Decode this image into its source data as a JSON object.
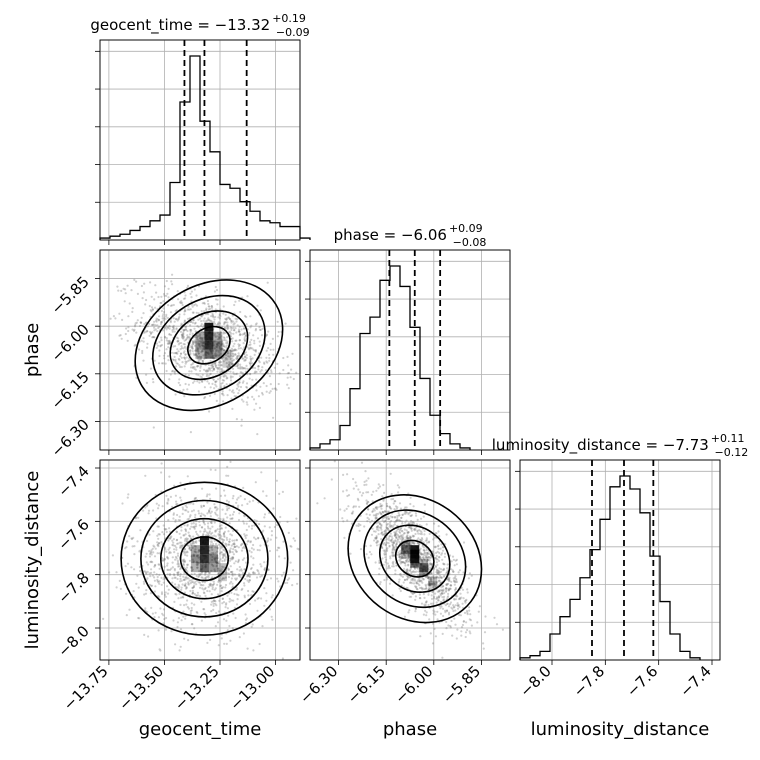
{
  "chart_data": {
    "type": "corner",
    "parameters": [
      "geocent_time",
      "phase",
      "luminosity_distance"
    ],
    "titles": [
      {
        "param": "geocent_time",
        "label": "geocent_time = ",
        "median": "−13.32",
        "plus": "+0.19",
        "minus": "−0.09"
      },
      {
        "param": "phase",
        "label": "phase = ",
        "median": "−6.06",
        "plus": "+0.09",
        "minus": "−0.08"
      },
      {
        "param": "luminosity_distance",
        "label": "luminosity_distance = ",
        "median": "−7.73",
        "plus": "+0.11",
        "minus": "−0.12"
      }
    ],
    "axis_labels": {
      "x": [
        "geocent_time",
        "phase",
        "luminosity_distance"
      ],
      "y": [
        "phase",
        "luminosity_distance"
      ]
    },
    "ranges": {
      "geocent_time": [
        -13.79,
        -12.89
      ],
      "phase": [
        -6.39,
        -5.76
      ],
      "luminosity_distance": [
        -8.12,
        -7.37
      ]
    },
    "ticks": {
      "geocent_time": [
        "−13.75",
        "−13.50",
        "−13.25",
        "−13.00"
      ],
      "phase": [
        "−6.30",
        "−6.15",
        "−6.00",
        "−5.85"
      ],
      "luminosity_distance": [
        "−8.0",
        "−7.8",
        "−7.6",
        "−7.4"
      ]
    },
    "quantiles": {
      "geocent_time": [
        -13.41,
        -13.32,
        -13.13
      ],
      "phase": [
        -6.14,
        -6.06,
        -5.98
      ],
      "luminosity_distance": [
        -7.85,
        -7.73,
        -7.62
      ]
    },
    "histograms": {
      "geocent_time": {
        "edges_start": -13.79,
        "bin_width": 0.045,
        "counts": [
          1,
          2,
          3,
          5,
          7,
          10,
          13,
          30,
          72,
          96,
          62,
          46,
          29,
          27,
          20,
          15,
          10,
          9,
          7,
          7,
          1
        ]
      },
      "phase": {
        "edges_start": -6.39,
        "bin_width": 0.0315,
        "counts": [
          1,
          3,
          5,
          12,
          30,
          57,
          65,
          83,
          90,
          80,
          60,
          35,
          17,
          8,
          3,
          1
        ]
      },
      "luminosity_distance": {
        "edges_start": -8.12,
        "bin_width": 0.0375,
        "counts": [
          1,
          2,
          4,
          12,
          20,
          28,
          38,
          51,
          65,
          80,
          85,
          79,
          68,
          48,
          27,
          12,
          4,
          1
        ]
      }
    },
    "grid": true,
    "line_color": "#000000",
    "scatter_color": "#888888"
  }
}
